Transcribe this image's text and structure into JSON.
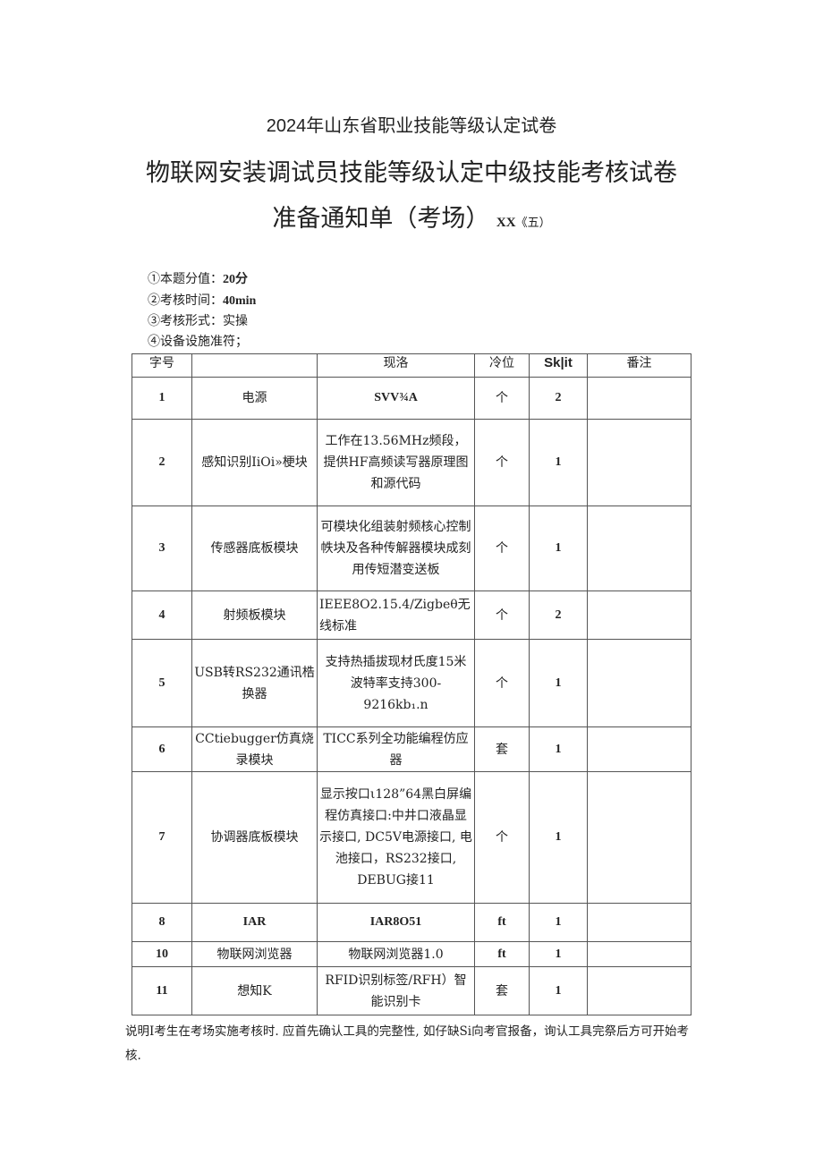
{
  "header": {
    "line1": "2024年山东省职业技能等级认定试卷",
    "line2": "物联网安装调试员技能等级认定中级技能考核试卷",
    "line3": "准备通知单（考场）",
    "line3_suffix": "XX",
    "line3_suffix2": "《五）"
  },
  "info": [
    {
      "label": "①本题分值：",
      "value": "20分"
    },
    {
      "label": "②考核时间：",
      "value": "40min"
    },
    {
      "label": "③考核形式：",
      "value": "实操"
    },
    {
      "label": "④设备设施准符；",
      "value": ""
    }
  ],
  "table": {
    "headers": [
      "字号",
      "",
      "现洛",
      "冷位",
      "Sk|it",
      "番注"
    ],
    "rows": [
      {
        "no": "1",
        "name": "电源",
        "spec": "SVV¾A",
        "unit": "个",
        "qty": "2",
        "note": ""
      },
      {
        "no": "2",
        "name": "感知识别IiOi»梗块",
        "spec": "工作在13.56MHz频段，提供HF高频读写器原理图和源代码",
        "unit": "个",
        "qty": "1",
        "note": ""
      },
      {
        "no": "3",
        "name": "传感器底板模块",
        "spec": "可模块化组装射频核心控制帙块及各种传解器模块成刻用传短潜变送板",
        "unit": "个",
        "qty": "1",
        "note": ""
      },
      {
        "no": "4",
        "name": "射频板模块",
        "spec": "IEEE8O2.15.4/Zigbeθ无线标准",
        "unit": "个",
        "qty": "2",
        "note": ""
      },
      {
        "no": "5",
        "name": "USB转RS232通讯梏换器",
        "spec": "支持热插拔现材氏度15米波特率支持300-9216kb₁.n",
        "unit": "个",
        "qty": "1",
        "note": ""
      },
      {
        "no": "6",
        "name": "CCtiebugger仿真烧录模块",
        "spec": "TICC系列全功能编程仿应器",
        "unit": "套",
        "qty": "1",
        "note": ""
      },
      {
        "no": "7",
        "name": "协调器底板模块",
        "spec": "显示按口ι128”64黑白屏编程仿真接口:中井口液晶显示接口, DC5V电源接口, 电池接口，RS232接口, DEBUG接11",
        "unit": "个",
        "qty": "1",
        "note": ""
      },
      {
        "no": "8",
        "name": "IAR",
        "spec": "IAR8O51",
        "unit": "ft",
        "qty": "1",
        "note": ""
      },
      {
        "no": "10",
        "name": "物联网浏览器",
        "spec": "物联网浏览器1.0",
        "unit": "ft",
        "qty": "1",
        "note": ""
      },
      {
        "no": "11",
        "name": "想知K",
        "spec": "RFID识别标签/RFH）智能识别卡",
        "unit": "套",
        "qty": "1",
        "note": ""
      }
    ]
  },
  "footer_note": "说明I考生在考场实施考核时. 应首先确认工具的完整性, 如仔缺Si向考官报备，询认工具完祭后方可开始考核."
}
